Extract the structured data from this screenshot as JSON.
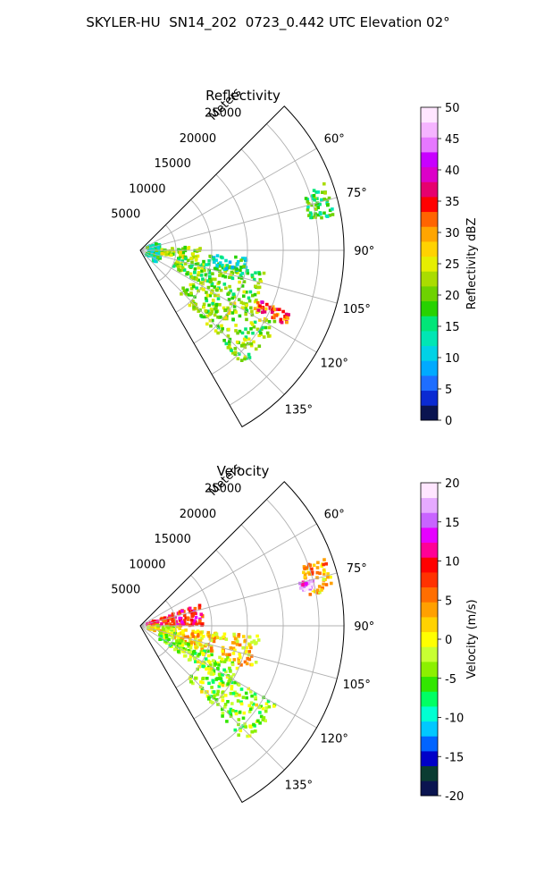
{
  "figure_title": "SKYLER-HU  SN14_202  0723_0.442 UTC Elevation 02°",
  "chart_data": [
    {
      "type": "heatmap",
      "projection": "polar-sector",
      "title": "Reflectivity",
      "radial_axis_label": "Meters",
      "radial_ticks": [
        5000,
        10000,
        15000,
        20000,
        25000
      ],
      "radial_tick_labels": [
        "5000",
        "10000",
        "15000",
        "20000",
        "25000"
      ],
      "theta_range_deg": [
        45,
        150
      ],
      "theta_ticks_deg": [
        60,
        75,
        90,
        105,
        120,
        135
      ],
      "theta_tick_labels": [
        "60°",
        "75°",
        "90°",
        "105°",
        "120°",
        "135°"
      ],
      "r_max": 28500,
      "grid": true,
      "colorbar": {
        "label": "Reflectivity dBZ",
        "range": [
          0,
          50
        ],
        "ticks": [
          0,
          5,
          10,
          15,
          20,
          25,
          30,
          35,
          40,
          45,
          50
        ],
        "colors": [
          "#0a1450",
          "#0a2ad2",
          "#1e6eff",
          "#00aaff",
          "#00d2e6",
          "#00e6b4",
          "#00e678",
          "#28d200",
          "#6ed200",
          "#aadc00",
          "#e6ee00",
          "#ffd200",
          "#ffa500",
          "#ff6400",
          "#ff0000",
          "#e6006e",
          "#dc00c8",
          "#c800ff",
          "#e678ff",
          "#f5b4ff",
          "#ffe6ff"
        ]
      },
      "echo_regions": [
        {
          "theta": [
            65,
            130
          ],
          "r": [
            1000,
            3000
          ],
          "value": 15
        },
        {
          "theta": [
            86,
            100
          ],
          "r": [
            3000,
            8500
          ],
          "value": 22
        },
        {
          "theta": [
            100,
            118
          ],
          "r": [
            5000,
            18000
          ],
          "value": 20
        },
        {
          "theta": [
            117,
            138
          ],
          "r": [
            8000,
            22000
          ],
          "value": 21
        },
        {
          "theta": [
            94,
            104
          ],
          "r": [
            9000,
            15000
          ],
          "value": 14
        },
        {
          "theta": [
            70,
            80
          ],
          "r": [
            24000,
            27500
          ],
          "value": 17
        },
        {
          "theta": [
            113,
            117
          ],
          "r": [
            18000,
            23000
          ],
          "value": 33
        }
      ]
    },
    {
      "type": "heatmap",
      "projection": "polar-sector",
      "title": "Velocity",
      "radial_axis_label": "Meters",
      "radial_ticks": [
        5000,
        10000,
        15000,
        20000,
        25000
      ],
      "radial_tick_labels": [
        "5000",
        "10000",
        "15000",
        "20000",
        "25000"
      ],
      "theta_range_deg": [
        45,
        150
      ],
      "theta_ticks_deg": [
        60,
        75,
        90,
        105,
        120,
        135
      ],
      "theta_tick_labels": [
        "60°",
        "75°",
        "90°",
        "105°",
        "120°",
        "135°"
      ],
      "r_max": 28500,
      "grid": true,
      "colorbar": {
        "label": "Velocity (m/s)",
        "range": [
          -20,
          20
        ],
        "ticks": [
          -20,
          -15,
          -10,
          -5,
          0,
          5,
          10,
          15,
          20
        ],
        "colors": [
          "#0a1450",
          "#0a3c32",
          "#0000c8",
          "#0064ff",
          "#00c8ff",
          "#00ffd2",
          "#00ff64",
          "#32e600",
          "#8cf000",
          "#c8ff32",
          "#ffff00",
          "#ffd200",
          "#ffa000",
          "#ff6e00",
          "#ff3200",
          "#ff0000",
          "#ff0096",
          "#e600ff",
          "#c864ff",
          "#e6aaff",
          "#ffe6ff"
        ]
      },
      "echo_regions": [
        {
          "theta": [
            70,
            90
          ],
          "r": [
            1000,
            9000
          ],
          "value": 9
        },
        {
          "theta": [
            90,
            110
          ],
          "r": [
            1000,
            6000
          ],
          "value": -1
        },
        {
          "theta": [
            95,
            112
          ],
          "r": [
            6000,
            17000
          ],
          "value": 2
        },
        {
          "theta": [
            110,
            125
          ],
          "r": [
            3000,
            15000
          ],
          "value": -3
        },
        {
          "theta": [
            120,
            138
          ],
          "r": [
            10000,
            22000
          ],
          "value": -3
        },
        {
          "theta": [
            70,
            80
          ],
          "r": [
            24000,
            27500
          ],
          "value": 3
        },
        {
          "theta": [
            75,
            78
          ],
          "r": [
            23000,
            25000
          ],
          "value": 16
        }
      ]
    }
  ]
}
